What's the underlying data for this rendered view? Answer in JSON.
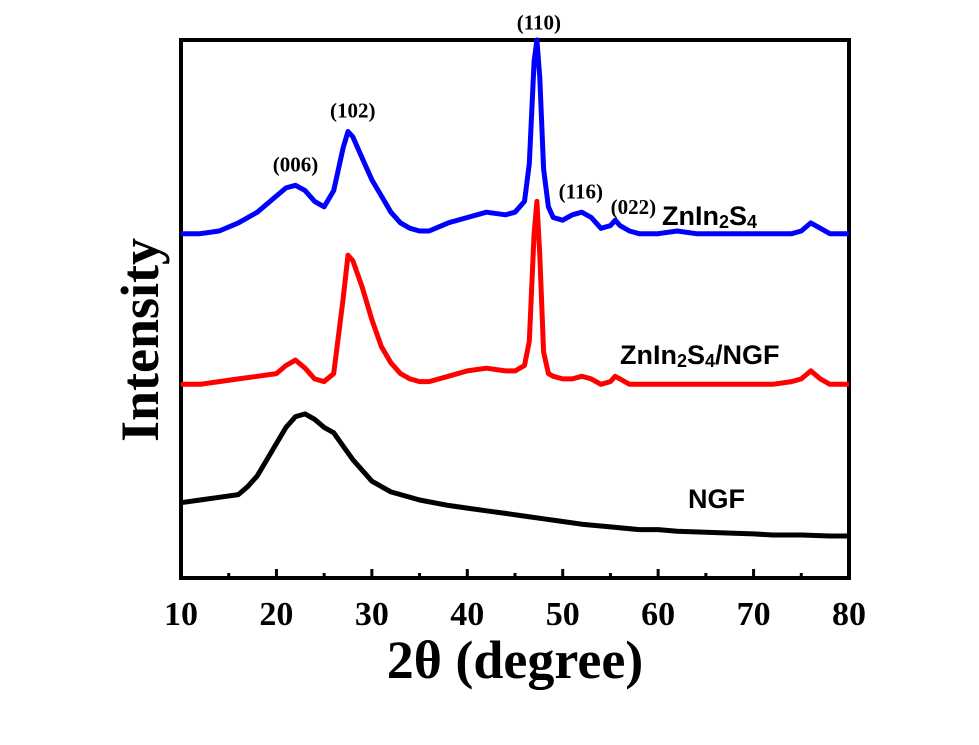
{
  "chart_data": {
    "type": "line",
    "title": "",
    "xlabel": "2θ (degree)",
    "ylabel": "Intensity",
    "xlim": [
      10,
      80
    ],
    "xticks": [
      "10",
      "20",
      "30",
      "40",
      "50",
      "60",
      "70",
      "80"
    ],
    "yticks_shown": false,
    "series": [
      {
        "name": "ZnIn2S4",
        "label_main": "ZnIn",
        "label_sub1": "2",
        "label_mid": "S",
        "label_sub2": "4",
        "color": "#0000ff",
        "x": [
          10,
          12,
          14,
          16,
          18,
          20,
          21,
          22,
          23,
          24,
          25,
          26,
          27,
          27.5,
          28,
          29,
          30,
          31,
          32,
          33,
          34,
          35,
          36,
          38,
          40,
          42,
          44,
          45,
          46,
          46.5,
          47,
          47.3,
          47.6,
          48,
          48.5,
          49,
          50,
          51,
          52,
          53,
          54,
          55,
          55.5,
          56,
          57,
          58,
          60,
          62,
          64,
          66,
          68,
          70,
          72,
          74,
          75,
          76,
          77,
          78,
          80
        ],
        "y": [
          0.64,
          0.64,
          0.645,
          0.66,
          0.68,
          0.71,
          0.725,
          0.73,
          0.72,
          0.7,
          0.69,
          0.72,
          0.8,
          0.83,
          0.82,
          0.78,
          0.74,
          0.71,
          0.68,
          0.66,
          0.65,
          0.645,
          0.645,
          0.66,
          0.67,
          0.68,
          0.675,
          0.68,
          0.7,
          0.77,
          0.96,
          1.0,
          0.93,
          0.76,
          0.69,
          0.67,
          0.665,
          0.675,
          0.68,
          0.67,
          0.65,
          0.655,
          0.665,
          0.655,
          0.645,
          0.64,
          0.64,
          0.645,
          0.64,
          0.64,
          0.64,
          0.64,
          0.64,
          0.64,
          0.645,
          0.66,
          0.65,
          0.64,
          0.64
        ]
      },
      {
        "name": "ZnIn2S4/NGF",
        "label_main": "ZnIn",
        "label_sub1": "2",
        "label_mid": "S",
        "label_sub2": "4",
        "label_tail": "/NGF",
        "color": "#ff0000",
        "x": [
          10,
          12,
          14,
          16,
          18,
          20,
          21,
          22,
          23,
          24,
          25,
          26,
          27,
          27.5,
          28,
          29,
          30,
          31,
          32,
          33,
          34,
          35,
          36,
          38,
          40,
          42,
          44,
          45,
          46,
          46.5,
          47,
          47.3,
          47.6,
          48,
          48.5,
          49,
          50,
          51,
          52,
          53,
          54,
          55,
          55.5,
          56,
          57,
          58,
          60,
          62,
          64,
          66,
          68,
          70,
          72,
          74,
          75,
          76,
          77,
          78,
          80
        ],
        "y": [
          0.36,
          0.36,
          0.365,
          0.37,
          0.375,
          0.38,
          0.395,
          0.405,
          0.39,
          0.37,
          0.365,
          0.38,
          0.52,
          0.6,
          0.59,
          0.54,
          0.48,
          0.43,
          0.4,
          0.38,
          0.37,
          0.365,
          0.365,
          0.375,
          0.385,
          0.39,
          0.385,
          0.385,
          0.395,
          0.44,
          0.64,
          0.7,
          0.6,
          0.42,
          0.38,
          0.375,
          0.37,
          0.37,
          0.375,
          0.37,
          0.36,
          0.365,
          0.375,
          0.37,
          0.36,
          0.36,
          0.36,
          0.36,
          0.36,
          0.36,
          0.36,
          0.36,
          0.36,
          0.365,
          0.37,
          0.385,
          0.37,
          0.36,
          0.36
        ]
      },
      {
        "name": "NGF",
        "label_main": "NGF",
        "color": "#000000",
        "x": [
          10,
          12,
          14,
          16,
          17,
          18,
          19,
          20,
          21,
          22,
          23,
          24,
          25,
          26,
          27,
          28,
          30,
          32,
          35,
          38,
          40,
          42,
          44,
          46,
          48,
          50,
          52,
          55,
          58,
          60,
          62,
          65,
          68,
          70,
          72,
          75,
          78,
          80
        ],
        "y": [
          0.14,
          0.145,
          0.15,
          0.155,
          0.17,
          0.19,
          0.22,
          0.25,
          0.28,
          0.3,
          0.305,
          0.295,
          0.28,
          0.27,
          0.245,
          0.22,
          0.18,
          0.16,
          0.145,
          0.135,
          0.13,
          0.125,
          0.12,
          0.115,
          0.11,
          0.105,
          0.1,
          0.095,
          0.09,
          0.09,
          0.087,
          0.085,
          0.083,
          0.082,
          0.08,
          0.08,
          0.078,
          0.078
        ]
      }
    ],
    "annotations": [
      {
        "text": "(006)",
        "x": 22
      },
      {
        "text": "(102)",
        "x": 28
      },
      {
        "text": "(110)",
        "x": 47.5
      },
      {
        "text": "(116)",
        "x": 51.9
      },
      {
        "text": "(022)",
        "x": 57.4
      }
    ]
  }
}
